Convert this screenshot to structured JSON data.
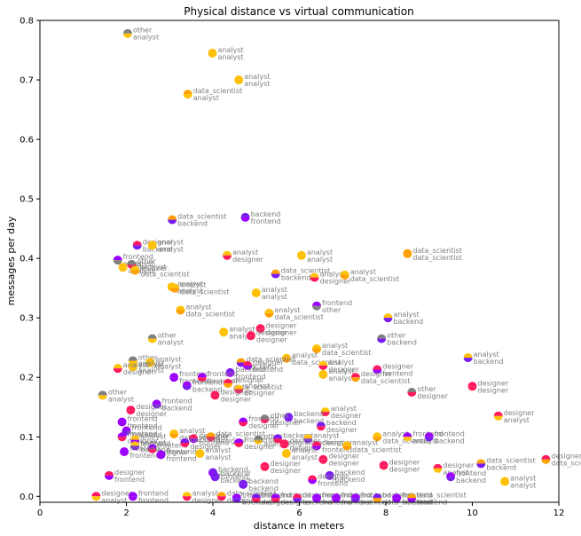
{
  "chart_data": {
    "type": "scatter",
    "title": "Physical distance vs virtual communication",
    "xlabel": "distance in meters",
    "ylabel": "messages per day",
    "xlim": [
      0,
      12
    ],
    "ylim": [
      -0.01,
      0.8
    ],
    "xticks": [
      0,
      2,
      4,
      6,
      8,
      10,
      12
    ],
    "yticks": [
      0.0,
      0.1,
      0.2,
      0.3,
      0.4,
      0.5,
      0.6,
      0.7,
      0.8
    ],
    "xtick_labels": [
      "0",
      "2",
      "4",
      "6",
      "8",
      "10",
      "12"
    ],
    "ytick_labels": [
      "0.0",
      "0.1",
      "0.2",
      "0.3",
      "0.4",
      "0.5",
      "0.6",
      "0.7",
      "0.8"
    ],
    "grid": false,
    "role_colors": {
      "analyst": "#ffc107",
      "data_scientist": "#ffa000",
      "designer": "#ff1a5e",
      "backend": "#7a1cf0",
      "frontend": "#9b00ff",
      "other": "#808080"
    },
    "points": [
      {
        "x": 2.03,
        "y": 0.778,
        "a": "other",
        "b": "analyst"
      },
      {
        "x": 3.99,
        "y": 0.745,
        "a": "analyst",
        "b": "analyst"
      },
      {
        "x": 4.6,
        "y": 0.7,
        "a": "analyst",
        "b": "analyst"
      },
      {
        "x": 3.42,
        "y": 0.676,
        "a": "data_scientist",
        "b": "analyst"
      },
      {
        "x": 3.06,
        "y": 0.465,
        "a": "data_scientist",
        "b": "backend"
      },
      {
        "x": 4.75,
        "y": 0.469,
        "a": "backend",
        "b": "frontend"
      },
      {
        "x": 2.25,
        "y": 0.422,
        "a": "designer",
        "b": "backend"
      },
      {
        "x": 2.6,
        "y": 0.422,
        "a": "analyst",
        "b": "analyst"
      },
      {
        "x": 4.33,
        "y": 0.405,
        "a": "analyst",
        "b": "designer"
      },
      {
        "x": 6.05,
        "y": 0.405,
        "a": "analyst",
        "b": "analyst"
      },
      {
        "x": 8.5,
        "y": 0.408,
        "a": "data_scientist",
        "b": "data_scientist"
      },
      {
        "x": 1.8,
        "y": 0.397,
        "a": "frontend",
        "b": "other"
      },
      {
        "x": 2.12,
        "y": 0.39,
        "a": "other",
        "b": "designer"
      },
      {
        "x": 1.92,
        "y": 0.385,
        "a": "analyst",
        "b": "analyst"
      },
      {
        "x": 2.2,
        "y": 0.38,
        "a": "analyst",
        "b": "data_scientist"
      },
      {
        "x": 5.45,
        "y": 0.374,
        "a": "data_scientist",
        "b": "backend"
      },
      {
        "x": 6.35,
        "y": 0.368,
        "a": "analyst",
        "b": "designer"
      },
      {
        "x": 7.05,
        "y": 0.372,
        "a": "analyst",
        "b": "data_scientist"
      },
      {
        "x": 3.05,
        "y": 0.352,
        "a": "analyst",
        "b": "analyst"
      },
      {
        "x": 3.12,
        "y": 0.35,
        "a": "analyst",
        "b": "data_scientist"
      },
      {
        "x": 5.0,
        "y": 0.342,
        "a": "analyst",
        "b": "analyst"
      },
      {
        "x": 6.4,
        "y": 0.32,
        "a": "frontend",
        "b": "other"
      },
      {
        "x": 3.25,
        "y": 0.313,
        "a": "analyst",
        "b": "data_scientist"
      },
      {
        "x": 5.3,
        "y": 0.308,
        "a": "analyst",
        "b": "data_scientist"
      },
      {
        "x": 8.05,
        "y": 0.3,
        "a": "analyst",
        "b": "backend"
      },
      {
        "x": 5.1,
        "y": 0.282,
        "a": "designer",
        "b": "designer"
      },
      {
        "x": 4.25,
        "y": 0.276,
        "a": "analyst",
        "b": "analyst"
      },
      {
        "x": 4.88,
        "y": 0.27,
        "a": "designer",
        "b": "designer"
      },
      {
        "x": 2.6,
        "y": 0.265,
        "a": "other",
        "b": "analyst"
      },
      {
        "x": 7.9,
        "y": 0.265,
        "a": "other",
        "b": "backend"
      },
      {
        "x": 6.4,
        "y": 0.248,
        "a": "analyst",
        "b": "data_scientist"
      },
      {
        "x": 9.9,
        "y": 0.233,
        "a": "analyst",
        "b": "backend"
      },
      {
        "x": 5.7,
        "y": 0.232,
        "a": "analyst",
        "b": "data_scientist"
      },
      {
        "x": 2.15,
        "y": 0.228,
        "a": "other",
        "b": "analyst"
      },
      {
        "x": 2.55,
        "y": 0.225,
        "a": "analyst",
        "b": "analyst"
      },
      {
        "x": 4.65,
        "y": 0.225,
        "a": "data_scientist",
        "b": "backend"
      },
      {
        "x": 4.8,
        "y": 0.22,
        "a": "designer",
        "b": "frontend"
      },
      {
        "x": 2.15,
        "y": 0.218,
        "a": "analyst",
        "b": "analyst"
      },
      {
        "x": 1.8,
        "y": 0.215,
        "a": "analyst",
        "b": "designer"
      },
      {
        "x": 6.55,
        "y": 0.22,
        "a": "analyst",
        "b": "designer"
      },
      {
        "x": 7.8,
        "y": 0.213,
        "a": "designer",
        "b": "frontend"
      },
      {
        "x": 4.4,
        "y": 0.208,
        "a": "backend",
        "b": "frontend"
      },
      {
        "x": 3.1,
        "y": 0.2,
        "a": "frontend",
        "b": "frontend"
      },
      {
        "x": 3.75,
        "y": 0.2,
        "a": "frontend",
        "b": "designer"
      },
      {
        "x": 6.55,
        "y": 0.205,
        "a": "analyst",
        "b": "analyst"
      },
      {
        "x": 7.3,
        "y": 0.2,
        "a": "designer",
        "b": "data_scientist"
      },
      {
        "x": 4.35,
        "y": 0.19,
        "a": "designer",
        "b": "data_scientist"
      },
      {
        "x": 3.4,
        "y": 0.186,
        "a": "frontend",
        "b": "backend"
      },
      {
        "x": 4.6,
        "y": 0.18,
        "a": "analyst",
        "b": "designer"
      },
      {
        "x": 8.6,
        "y": 0.175,
        "a": "other",
        "b": "designer"
      },
      {
        "x": 10.0,
        "y": 0.185,
        "a": "designer",
        "b": "designer"
      },
      {
        "x": 1.45,
        "y": 0.17,
        "a": "other",
        "b": "analyst"
      },
      {
        "x": 4.05,
        "y": 0.17,
        "a": "designer",
        "b": "designer"
      },
      {
        "x": 2.7,
        "y": 0.155,
        "a": "frontend",
        "b": "backend"
      },
      {
        "x": 2.1,
        "y": 0.145,
        "a": "designer",
        "b": "designer"
      },
      {
        "x": 6.6,
        "y": 0.142,
        "a": "analyst",
        "b": "designer"
      },
      {
        "x": 10.6,
        "y": 0.135,
        "a": "designer",
        "b": "analyst"
      },
      {
        "x": 5.75,
        "y": 0.133,
        "a": "backend",
        "b": "backend"
      },
      {
        "x": 5.2,
        "y": 0.13,
        "a": "other",
        "b": "designer"
      },
      {
        "x": 4.7,
        "y": 0.125,
        "a": "frontend",
        "b": "designer"
      },
      {
        "x": 1.9,
        "y": 0.125,
        "a": "frontend",
        "b": "frontend"
      },
      {
        "x": 6.5,
        "y": 0.118,
        "a": "backend",
        "b": "designer"
      },
      {
        "x": 2.0,
        "y": 0.11,
        "a": "frontend",
        "b": "backend"
      },
      {
        "x": 1.9,
        "y": 0.1,
        "a": "frontend",
        "b": "designer"
      },
      {
        "x": 3.1,
        "y": 0.105,
        "a": "analyst",
        "b": "data_scientist"
      },
      {
        "x": 3.55,
        "y": 0.097,
        "a": "designer",
        "b": "frontend"
      },
      {
        "x": 3.95,
        "y": 0.1,
        "a": "data_scientist",
        "b": "designer"
      },
      {
        "x": 5.05,
        "y": 0.095,
        "a": "other",
        "b": "analyst"
      },
      {
        "x": 5.5,
        "y": 0.097,
        "a": "backend",
        "b": "designer"
      },
      {
        "x": 6.2,
        "y": 0.097,
        "a": "analyst",
        "b": "backend"
      },
      {
        "x": 7.8,
        "y": 0.1,
        "a": "analyst",
        "b": "data_scientist"
      },
      {
        "x": 8.5,
        "y": 0.1,
        "a": "frontend",
        "b": "analyst"
      },
      {
        "x": 9.0,
        "y": 0.1,
        "a": "frontend",
        "b": "backend"
      },
      {
        "x": 2.2,
        "y": 0.095,
        "a": "analyst",
        "b": "frontend"
      },
      {
        "x": 2.2,
        "y": 0.085,
        "a": "analyst",
        "b": "backend"
      },
      {
        "x": 2.6,
        "y": 0.08,
        "a": "frontend",
        "b": "designer"
      },
      {
        "x": 3.35,
        "y": 0.09,
        "a": "backend",
        "b": "designer"
      },
      {
        "x": 4.6,
        "y": 0.09,
        "a": "frontend",
        "b": "designer"
      },
      {
        "x": 5.65,
        "y": 0.088,
        "a": "designer",
        "b": "designer"
      },
      {
        "x": 6.4,
        "y": 0.085,
        "a": "designer",
        "b": "frontend"
      },
      {
        "x": 7.1,
        "y": 0.085,
        "a": "analyst",
        "b": "data_scientist"
      },
      {
        "x": 1.95,
        "y": 0.075,
        "a": "frontend",
        "b": "frontend"
      },
      {
        "x": 2.8,
        "y": 0.07,
        "a": "frontend",
        "b": "frontend"
      },
      {
        "x": 3.7,
        "y": 0.072,
        "a": "analyst",
        "b": "analyst"
      },
      {
        "x": 5.7,
        "y": 0.072,
        "a": "analyst",
        "b": "analyst"
      },
      {
        "x": 6.55,
        "y": 0.062,
        "a": "designer",
        "b": "designer"
      },
      {
        "x": 7.95,
        "y": 0.052,
        "a": "designer",
        "b": "designer"
      },
      {
        "x": 9.2,
        "y": 0.047,
        "a": "designer",
        "b": "analyst"
      },
      {
        "x": 10.2,
        "y": 0.055,
        "a": "data_scientist",
        "b": "backend"
      },
      {
        "x": 11.7,
        "y": 0.062,
        "a": "designer",
        "b": "data_scientist"
      },
      {
        "x": 5.2,
        "y": 0.05,
        "a": "designer",
        "b": "designer"
      },
      {
        "x": 4.0,
        "y": 0.04,
        "a": "backend",
        "b": "frontend"
      },
      {
        "x": 4.05,
        "y": 0.033,
        "a": "backend",
        "b": "backend"
      },
      {
        "x": 1.6,
        "y": 0.035,
        "a": "designer",
        "b": "frontend"
      },
      {
        "x": 6.7,
        "y": 0.035,
        "a": "backend",
        "b": "backend"
      },
      {
        "x": 9.5,
        "y": 0.033,
        "a": "frontend",
        "b": "backend"
      },
      {
        "x": 10.75,
        "y": 0.025,
        "a": "analyst",
        "b": "analyst"
      },
      {
        "x": 6.3,
        "y": 0.028,
        "a": "designer",
        "b": "frontend"
      },
      {
        "x": 4.7,
        "y": 0.02,
        "a": "backend",
        "b": "backend"
      },
      {
        "x": 1.3,
        "y": 0.0,
        "a": "designer",
        "b": "analyst"
      },
      {
        "x": 2.15,
        "y": 0.0,
        "a": "frontend",
        "b": "frontend"
      },
      {
        "x": 3.4,
        "y": 0.0,
        "a": "analyst",
        "b": "designer"
      },
      {
        "x": 4.2,
        "y": 0.0,
        "a": "data_scientist",
        "b": "designer"
      },
      {
        "x": 4.55,
        "y": -0.003,
        "a": "frontend",
        "b": "backend"
      },
      {
        "x": 5.0,
        "y": -0.003,
        "a": "backend",
        "b": "designer"
      },
      {
        "x": 5.45,
        "y": -0.003,
        "a": "frontend",
        "b": "designer"
      },
      {
        "x": 5.95,
        "y": -0.003,
        "a": "designer",
        "b": "backend"
      },
      {
        "x": 6.4,
        "y": -0.003,
        "a": "frontend",
        "b": "frontend"
      },
      {
        "x": 6.85,
        "y": -0.003,
        "a": "frontend",
        "b": "frontend"
      },
      {
        "x": 7.3,
        "y": -0.003,
        "a": "frontend",
        "b": "backend"
      },
      {
        "x": 7.8,
        "y": -0.003,
        "a": "backend",
        "b": "data_scientist"
      },
      {
        "x": 8.25,
        "y": -0.003,
        "a": "frontend",
        "b": "frontend"
      },
      {
        "x": 8.6,
        "y": -0.003,
        "a": "data_scientist",
        "b": "frontend"
      }
    ]
  }
}
